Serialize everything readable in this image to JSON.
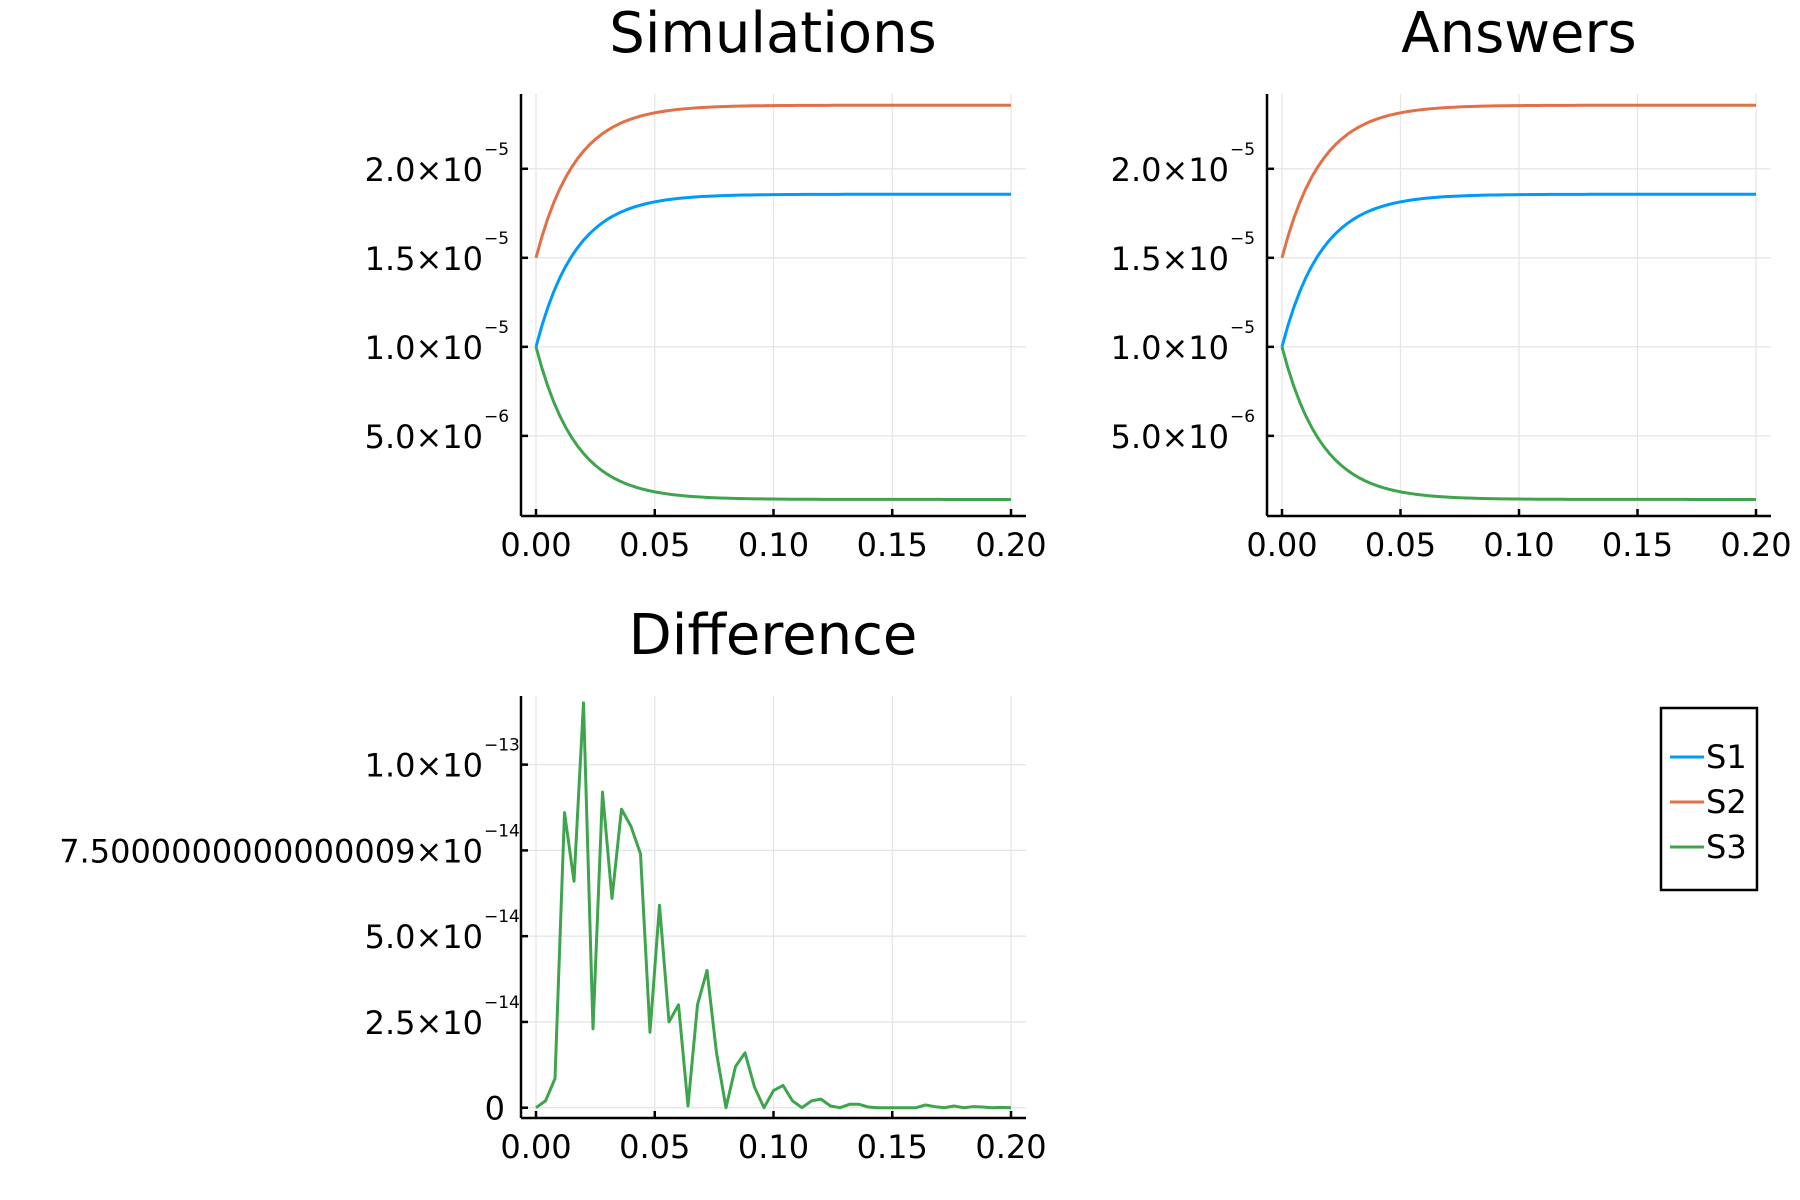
{
  "chart_data": [
    {
      "type": "line",
      "title": "Simulations",
      "xlabel": "",
      "ylabel": "",
      "xlim": [
        0,
        0.2
      ],
      "ylim": [
        5e-07,
        2.42e-05
      ],
      "xticks": [
        "0.00",
        "0.05",
        "0.10",
        "0.15",
        "0.20"
      ],
      "yticks": [
        {
          "value": 5e-06,
          "mantissa": "5.0×10",
          "exponent": "−6"
        },
        {
          "value": 1e-05,
          "mantissa": "1.0×10",
          "exponent": "−5"
        },
        {
          "value": 1.5e-05,
          "mantissa": "1.5×10",
          "exponent": "−5"
        },
        {
          "value": 2e-05,
          "mantissa": "2.0×10",
          "exponent": "−5"
        }
      ],
      "grid": true,
      "series": [
        {
          "name": "S1",
          "x_from": 0,
          "x_to": 0.2,
          "start": 1e-05,
          "end": 1.857e-05,
          "decay_rate": 60
        },
        {
          "name": "S2",
          "x_from": 0,
          "x_to": 0.2,
          "start": 1.5e-05,
          "end": 2.357e-05,
          "decay_rate": 60
        },
        {
          "name": "S3",
          "x_from": 0,
          "x_to": 0.2,
          "start": 1e-05,
          "end": 1.43e-06,
          "decay_rate": 60
        }
      ]
    },
    {
      "type": "line",
      "title": "Answers",
      "xlabel": "",
      "ylabel": "",
      "xlim": [
        0,
        0.2
      ],
      "ylim": [
        5e-07,
        2.42e-05
      ],
      "xticks": [
        "0.00",
        "0.05",
        "0.10",
        "0.15",
        "0.20"
      ],
      "yticks": [
        {
          "value": 5e-06,
          "mantissa": "5.0×10",
          "exponent": "−6"
        },
        {
          "value": 1e-05,
          "mantissa": "1.0×10",
          "exponent": "−5"
        },
        {
          "value": 1.5e-05,
          "mantissa": "1.5×10",
          "exponent": "−5"
        },
        {
          "value": 2e-05,
          "mantissa": "2.0×10",
          "exponent": "−5"
        }
      ],
      "grid": true,
      "series": [
        {
          "name": "S1",
          "x_from": 0,
          "x_to": 0.2,
          "start": 1e-05,
          "end": 1.857e-05,
          "decay_rate": 60
        },
        {
          "name": "S2",
          "x_from": 0,
          "x_to": 0.2,
          "start": 1.5e-05,
          "end": 2.357e-05,
          "decay_rate": 60
        },
        {
          "name": "S3",
          "x_from": 0,
          "x_to": 0.2,
          "start": 1e-05,
          "end": 1.43e-06,
          "decay_rate": 60
        }
      ]
    },
    {
      "type": "line",
      "title": "Difference",
      "xlabel": "",
      "ylabel": "",
      "xlim": [
        0,
        0.2
      ],
      "ylim": [
        -3e-15,
        1.2e-13
      ],
      "xticks": [
        "0.00",
        "0.05",
        "0.10",
        "0.15",
        "0.20"
      ],
      "yticks": [
        {
          "value": 0,
          "mantissa": "0",
          "exponent": ""
        },
        {
          "value": 2.5e-14,
          "mantissa": "2.5×10",
          "exponent": "−14"
        },
        {
          "value": 5e-14,
          "mantissa": "5.0×10",
          "exponent": "−14"
        },
        {
          "value": 7.5e-14,
          "mantissa": "7.5000000000000009×10",
          "exponent": "−14"
        },
        {
          "value": 1e-13,
          "mantissa": "1.0×10",
          "exponent": "−13"
        }
      ],
      "grid": true,
      "series": [
        {
          "name": "S3",
          "x": [
            0,
            0.004,
            0.008,
            0.012,
            0.016,
            0.02,
            0.024,
            0.028,
            0.032,
            0.036,
            0.04,
            0.044,
            0.048,
            0.052,
            0.056,
            0.06,
            0.064,
            0.068,
            0.072,
            0.076,
            0.08,
            0.084,
            0.088,
            0.092,
            0.096,
            0.1,
            0.104,
            0.108,
            0.112,
            0.116,
            0.12,
            0.124,
            0.128,
            0.132,
            0.136,
            0.14,
            0.144,
            0.148,
            0.152,
            0.156,
            0.16,
            0.164,
            0.168,
            0.172,
            0.176,
            0.18,
            0.184,
            0.188,
            0.192,
            0.196,
            0.2
          ],
          "y": [
            0,
            2e-15,
            8.5e-15,
            8.6e-14,
            6.6e-14,
            1.18e-13,
            2.3e-14,
            9.2e-14,
            6.1e-14,
            8.7e-14,
            8.2e-14,
            7.4e-14,
            2.2e-14,
            5.9e-14,
            2.5e-14,
            3e-14,
            5e-16,
            3e-14,
            4e-14,
            1.6e-14,
            0,
            1.2e-14,
            1.6e-14,
            6e-15,
            0,
            5e-15,
            6.5e-15,
            2e-15,
            0,
            2e-15,
            2.5e-15,
            5e-16,
            0,
            1e-15,
            1e-15,
            2e-16,
            0,
            0,
            0,
            0,
            0,
            8e-16,
            3e-16,
            0,
            5e-16,
            0,
            3e-16,
            2e-16,
            0,
            1e-16,
            0
          ]
        }
      ]
    }
  ],
  "legend": {
    "placement": "right",
    "entries": [
      {
        "name": "S1",
        "color": "#009AFA"
      },
      {
        "name": "S2",
        "color": "#E36F47"
      },
      {
        "name": "S3",
        "color": "#3EA44E"
      }
    ]
  },
  "colors": {
    "S1": "#009AFA",
    "S2": "#E36F47",
    "S3": "#3EA44E"
  }
}
